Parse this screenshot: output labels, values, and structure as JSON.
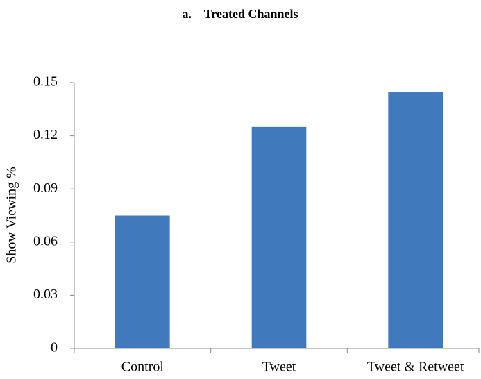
{
  "chart_data": {
    "type": "bar",
    "title": "a.    Treated Channels",
    "ylabel": "Show Viewing %",
    "categories": [
      "Control",
      "Tweet",
      "Tweet & Retweet"
    ],
    "values": [
      0.075,
      0.125,
      0.1445
    ],
    "color": "#4179bd",
    "ylim": [
      0,
      0.15
    ],
    "yticks": [
      0,
      0.03,
      0.06,
      0.09,
      0.12,
      0.15
    ],
    "grid": false
  }
}
